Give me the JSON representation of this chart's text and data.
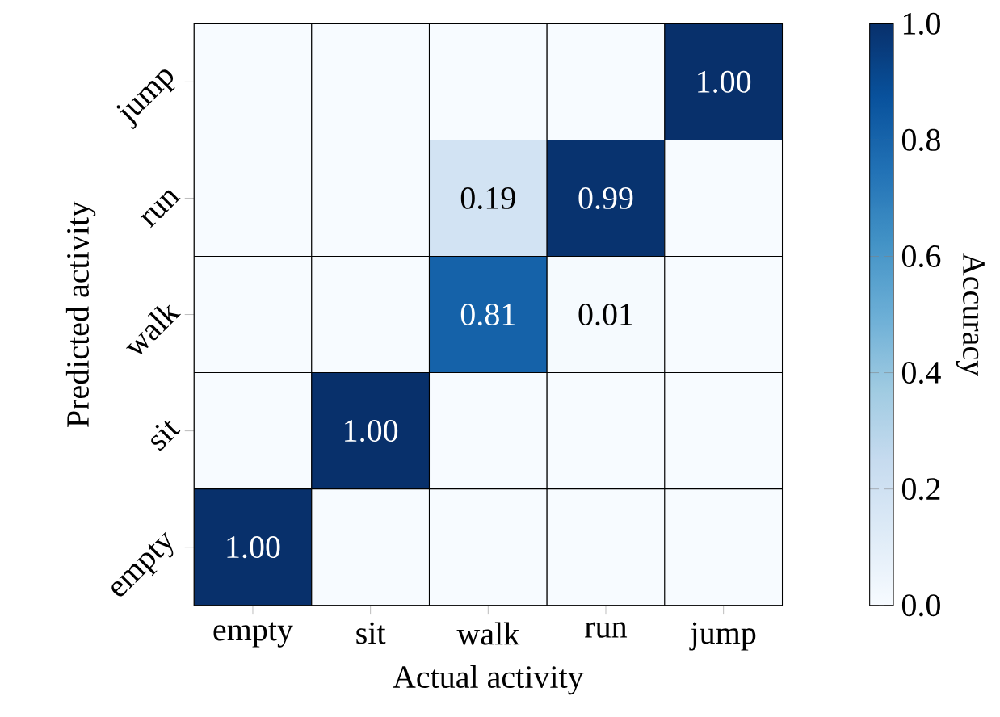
{
  "chart_data": {
    "type": "heatmap",
    "xlabel": "Actual activity",
    "ylabel": "Predicted activity",
    "clabel": "Accuracy",
    "categories": [
      "empty",
      "sit",
      "walk",
      "run",
      "jump"
    ],
    "y_categories": [
      "jump",
      "run",
      "walk",
      "sit",
      "empty"
    ],
    "cells": [
      [
        0,
        0,
        0,
        0,
        1.0
      ],
      [
        0,
        0,
        0.19,
        0.99,
        0
      ],
      [
        0,
        0,
        0.81,
        0.01,
        0
      ],
      [
        0,
        1.0,
        0,
        0,
        0
      ],
      [
        1.0,
        0,
        0,
        0,
        0
      ]
    ],
    "cell_labels": [
      [
        null,
        null,
        null,
        null,
        "1.00"
      ],
      [
        null,
        null,
        "0.19",
        "0.99",
        null
      ],
      [
        null,
        null,
        "0.81",
        "0.01",
        null
      ],
      [
        null,
        "1.00",
        null,
        null,
        null
      ],
      [
        "1.00",
        null,
        null,
        null,
        null
      ]
    ],
    "clim": [
      0,
      1
    ],
    "cticks": [
      {
        "value": 0,
        "label": "0.0"
      },
      {
        "value": 0.2,
        "label": "0.2"
      },
      {
        "value": 0.4,
        "label": "0.4"
      },
      {
        "value": 0.6,
        "label": "0.6"
      },
      {
        "value": 0.8,
        "label": "0.8"
      },
      {
        "value": 1,
        "label": "1.0"
      }
    ]
  }
}
